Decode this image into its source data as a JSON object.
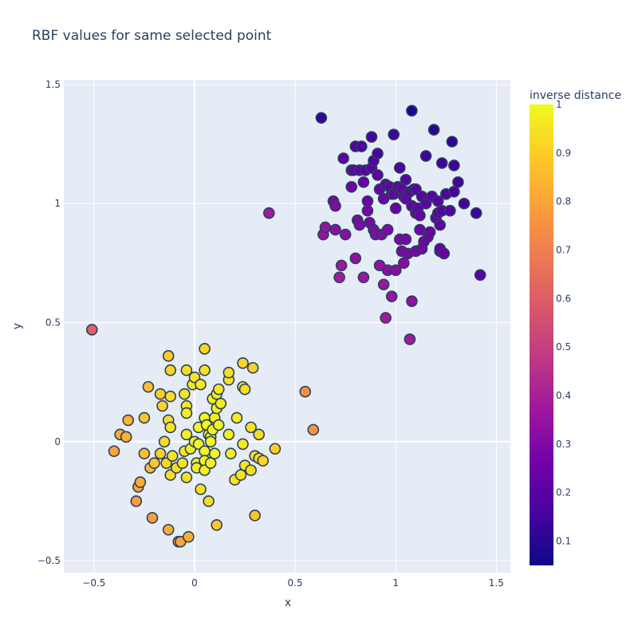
{
  "chart_data": {
    "type": "scatter",
    "title": "RBF values for same selected point",
    "xlabel": "x",
    "ylabel": "y",
    "xlim": [
      -0.65,
      1.57
    ],
    "ylim": [
      -0.55,
      1.52
    ],
    "xticks": [
      -0.5,
      0,
      0.5,
      1,
      1.5
    ],
    "xtick_labels": [
      "−0.5",
      "0",
      "0.5",
      "1",
      "1.5"
    ],
    "yticks": [
      -0.5,
      0,
      0.5,
      1,
      1.5
    ],
    "ytick_labels": [
      "−0.5",
      "0",
      "0.5",
      "1",
      "1.5"
    ],
    "grid": true,
    "colorbar": {
      "title": "inverse distance",
      "range": [
        0.05,
        1.0
      ],
      "ticks": [
        0.1,
        0.2,
        0.3,
        0.4,
        0.5,
        0.6,
        0.7,
        0.8,
        0.9,
        1
      ],
      "tick_labels": [
        "0.1",
        "0.2",
        "0.3",
        "0.4",
        "0.5",
        "0.6",
        "0.7",
        "0.8",
        "0.9",
        "1"
      ],
      "colorscale": [
        "#0d0887",
        "#46039f",
        "#7201a8",
        "#9c179e",
        "#bd3786",
        "#d8576b",
        "#ed7953",
        "#fb9f3a",
        "#fdca26",
        "#f0f921"
      ]
    },
    "marker_outline_color": "#2a3f5f",
    "points": [
      [
        -0.51,
        0.47,
        0.6
      ],
      [
        0.37,
        0.96,
        0.38
      ],
      [
        0.55,
        0.21,
        0.75
      ],
      [
        0.59,
        0.05,
        0.76
      ],
      [
        -0.4,
        -0.04,
        0.8
      ],
      [
        -0.37,
        0.03,
        0.82
      ],
      [
        -0.34,
        0.02,
        0.83
      ],
      [
        -0.33,
        0.09,
        0.84
      ],
      [
        -0.29,
        -0.25,
        0.78
      ],
      [
        -0.28,
        -0.19,
        0.8
      ],
      [
        -0.27,
        -0.17,
        0.82
      ],
      [
        -0.25,
        0.1,
        0.88
      ],
      [
        -0.25,
        -0.05,
        0.87
      ],
      [
        -0.23,
        0.23,
        0.86
      ],
      [
        -0.22,
        -0.11,
        0.86
      ],
      [
        -0.21,
        -0.32,
        0.79
      ],
      [
        -0.2,
        -0.09,
        0.88
      ],
      [
        -0.17,
        0.2,
        0.9
      ],
      [
        -0.17,
        -0.05,
        0.91
      ],
      [
        -0.16,
        0.15,
        0.92
      ],
      [
        -0.15,
        0.0,
        0.93
      ],
      [
        -0.14,
        -0.09,
        0.92
      ],
      [
        -0.13,
        0.36,
        0.9
      ],
      [
        -0.13,
        0.09,
        0.94
      ],
      [
        -0.13,
        -0.37,
        0.82
      ],
      [
        -0.12,
        0.3,
        0.92
      ],
      [
        -0.12,
        0.19,
        0.94
      ],
      [
        -0.12,
        0.06,
        0.95
      ],
      [
        -0.12,
        -0.14,
        0.93
      ],
      [
        -0.11,
        -0.06,
        0.95
      ],
      [
        -0.09,
        -0.11,
        0.94
      ],
      [
        -0.08,
        -0.42,
        0.8
      ],
      [
        -0.07,
        -0.42,
        0.8
      ],
      [
        -0.06,
        -0.09,
        0.95
      ],
      [
        -0.05,
        0.2,
        0.96
      ],
      [
        -0.05,
        -0.04,
        0.96
      ],
      [
        -0.04,
        0.3,
        0.94
      ],
      [
        -0.04,
        0.15,
        0.97
      ],
      [
        -0.04,
        0.12,
        0.97
      ],
      [
        -0.04,
        0.03,
        0.98
      ],
      [
        -0.04,
        -0.15,
        0.94
      ],
      [
        -0.03,
        -0.4,
        0.83
      ],
      [
        -0.02,
        -0.03,
        0.98
      ],
      [
        -0.01,
        0.24,
        0.96
      ],
      [
        0.0,
        0.27,
        0.95
      ],
      [
        0.0,
        0.0,
        0.99
      ],
      [
        0.01,
        -0.09,
        0.98
      ],
      [
        0.01,
        -0.11,
        0.97
      ],
      [
        0.02,
        0.06,
        0.99
      ],
      [
        0.02,
        -0.01,
        0.99
      ],
      [
        0.03,
        0.24,
        0.96
      ],
      [
        0.03,
        -0.2,
        0.95
      ],
      [
        0.05,
        0.39,
        0.92
      ],
      [
        0.05,
        0.3,
        0.95
      ],
      [
        0.05,
        0.1,
        0.99
      ],
      [
        0.05,
        -0.04,
        0.99
      ],
      [
        0.05,
        -0.08,
        0.98
      ],
      [
        0.05,
        -0.12,
        0.97
      ],
      [
        0.06,
        0.07,
        0.99
      ],
      [
        0.07,
        0.03,
        0.99
      ],
      [
        0.07,
        -0.25,
        0.93
      ],
      [
        0.08,
        0.02,
        0.99
      ],
      [
        0.08,
        0.0,
        1.0
      ],
      [
        0.08,
        -0.09,
        0.98
      ],
      [
        0.09,
        0.18,
        0.97
      ],
      [
        0.09,
        0.05,
        0.99
      ],
      [
        0.1,
        0.1,
        0.98
      ],
      [
        0.1,
        -0.05,
        0.99
      ],
      [
        0.11,
        0.2,
        0.97
      ],
      [
        0.11,
        0.14,
        0.98
      ],
      [
        0.11,
        -0.35,
        0.89
      ],
      [
        0.12,
        0.22,
        0.96
      ],
      [
        0.12,
        0.07,
        0.99
      ],
      [
        0.13,
        0.16,
        0.97
      ],
      [
        0.17,
        0.26,
        0.95
      ],
      [
        0.17,
        0.29,
        0.94
      ],
      [
        0.17,
        0.03,
        0.98
      ],
      [
        0.18,
        -0.05,
        0.97
      ],
      [
        0.2,
        -0.16,
        0.95
      ],
      [
        0.21,
        0.1,
        0.97
      ],
      [
        0.23,
        -0.14,
        0.95
      ],
      [
        0.24,
        0.33,
        0.92
      ],
      [
        0.24,
        0.23,
        0.94
      ],
      [
        0.24,
        -0.01,
        0.96
      ],
      [
        0.25,
        0.22,
        0.94
      ],
      [
        0.25,
        -0.1,
        0.95
      ],
      [
        0.28,
        0.06,
        0.95
      ],
      [
        0.28,
        -0.12,
        0.94
      ],
      [
        0.29,
        0.31,
        0.91
      ],
      [
        0.3,
        -0.31,
        0.88
      ],
      [
        0.3,
        -0.06,
        0.94
      ],
      [
        0.32,
        0.03,
        0.94
      ],
      [
        0.32,
        -0.07,
        0.93
      ],
      [
        0.34,
        -0.08,
        0.92
      ],
      [
        0.4,
        -0.03,
        0.9
      ],
      [
        0.63,
        1.36,
        0.12
      ],
      [
        0.64,
        0.87,
        0.35
      ],
      [
        0.65,
        0.9,
        0.35
      ],
      [
        0.69,
        1.01,
        0.28
      ],
      [
        0.7,
        0.99,
        0.3
      ],
      [
        0.7,
        0.89,
        0.33
      ],
      [
        0.72,
        0.69,
        0.38
      ],
      [
        0.73,
        0.74,
        0.37
      ],
      [
        0.74,
        1.19,
        0.2
      ],
      [
        0.75,
        0.87,
        0.32
      ],
      [
        0.78,
        1.14,
        0.22
      ],
      [
        0.78,
        1.07,
        0.25
      ],
      [
        0.79,
        1.14,
        0.22
      ],
      [
        0.8,
        1.24,
        0.18
      ],
      [
        0.8,
        0.77,
        0.34
      ],
      [
        0.81,
        0.93,
        0.29
      ],
      [
        0.82,
        1.14,
        0.22
      ],
      [
        0.82,
        0.91,
        0.3
      ],
      [
        0.83,
        1.24,
        0.18
      ],
      [
        0.84,
        1.09,
        0.24
      ],
      [
        0.84,
        0.69,
        0.36
      ],
      [
        0.85,
        1.14,
        0.21
      ],
      [
        0.86,
        1.01,
        0.26
      ],
      [
        0.86,
        0.97,
        0.28
      ],
      [
        0.87,
        0.92,
        0.29
      ],
      [
        0.88,
        1.28,
        0.16
      ],
      [
        0.88,
        1.15,
        0.2
      ],
      [
        0.89,
        1.18,
        0.19
      ],
      [
        0.89,
        0.89,
        0.3
      ],
      [
        0.9,
        0.87,
        0.31
      ],
      [
        0.91,
        1.21,
        0.18
      ],
      [
        0.91,
        1.12,
        0.21
      ],
      [
        0.92,
        0.74,
        0.34
      ],
      [
        0.92,
        1.06,
        0.23
      ],
      [
        0.93,
        0.87,
        0.3
      ],
      [
        0.94,
        0.66,
        0.36
      ],
      [
        0.94,
        1.02,
        0.25
      ],
      [
        0.95,
        1.08,
        0.22
      ],
      [
        0.95,
        0.52,
        0.38
      ],
      [
        0.96,
        0.89,
        0.29
      ],
      [
        0.96,
        0.72,
        0.33
      ],
      [
        0.97,
        1.07,
        0.22
      ],
      [
        0.98,
        1.04,
        0.23
      ],
      [
        0.98,
        0.61,
        0.35
      ],
      [
        0.99,
        1.29,
        0.14
      ],
      [
        0.99,
        1.04,
        0.23
      ],
      [
        1.0,
        0.98,
        0.25
      ],
      [
        1.0,
        0.72,
        0.32
      ],
      [
        1.01,
        1.07,
        0.21
      ],
      [
        1.02,
        1.15,
        0.18
      ],
      [
        1.02,
        1.05,
        0.22
      ],
      [
        1.02,
        0.85,
        0.28
      ],
      [
        1.03,
        0.8,
        0.29
      ],
      [
        1.03,
        1.06,
        0.22
      ],
      [
        1.04,
        1.03,
        0.23
      ],
      [
        1.04,
        0.75,
        0.31
      ],
      [
        1.05,
        1.1,
        0.2
      ],
      [
        1.05,
        1.02,
        0.23
      ],
      [
        1.05,
        0.85,
        0.28
      ],
      [
        1.06,
        0.79,
        0.29
      ],
      [
        1.07,
        1.05,
        0.21
      ],
      [
        1.07,
        0.43,
        0.38
      ],
      [
        1.08,
        1.39,
        0.08
      ],
      [
        1.08,
        0.99,
        0.23
      ],
      [
        1.08,
        0.59,
        0.34
      ],
      [
        1.09,
        1.06,
        0.21
      ],
      [
        1.1,
        1.06,
        0.2
      ],
      [
        1.1,
        0.96,
        0.24
      ],
      [
        1.1,
        0.8,
        0.28
      ],
      [
        1.11,
        0.98,
        0.23
      ],
      [
        1.12,
        0.95,
        0.24
      ],
      [
        1.12,
        0.89,
        0.26
      ],
      [
        1.13,
        1.03,
        0.21
      ],
      [
        1.13,
        0.81,
        0.27
      ],
      [
        1.14,
        0.84,
        0.26
      ],
      [
        1.15,
        1.2,
        0.14
      ],
      [
        1.15,
        1.0,
        0.22
      ],
      [
        1.16,
        0.86,
        0.25
      ],
      [
        1.17,
        0.88,
        0.24
      ],
      [
        1.18,
        1.03,
        0.2
      ],
      [
        1.19,
        1.31,
        0.1
      ],
      [
        1.2,
        0.94,
        0.22
      ],
      [
        1.21,
        1.01,
        0.2
      ],
      [
        1.21,
        0.96,
        0.21
      ],
      [
        1.22,
        0.91,
        0.22
      ],
      [
        1.22,
        0.8,
        0.25
      ],
      [
        1.22,
        0.81,
        0.25
      ],
      [
        1.23,
        1.17,
        0.15
      ],
      [
        1.23,
        0.97,
        0.2
      ],
      [
        1.24,
        0.79,
        0.24
      ],
      [
        1.25,
        1.04,
        0.18
      ],
      [
        1.27,
        0.97,
        0.19
      ],
      [
        1.28,
        1.26,
        0.11
      ],
      [
        1.29,
        1.16,
        0.14
      ],
      [
        1.29,
        1.05,
        0.17
      ],
      [
        1.31,
        1.09,
        0.15
      ],
      [
        1.34,
        1.0,
        0.16
      ],
      [
        1.4,
        0.96,
        0.14
      ],
      [
        1.42,
        0.7,
        0.2
      ]
    ]
  }
}
